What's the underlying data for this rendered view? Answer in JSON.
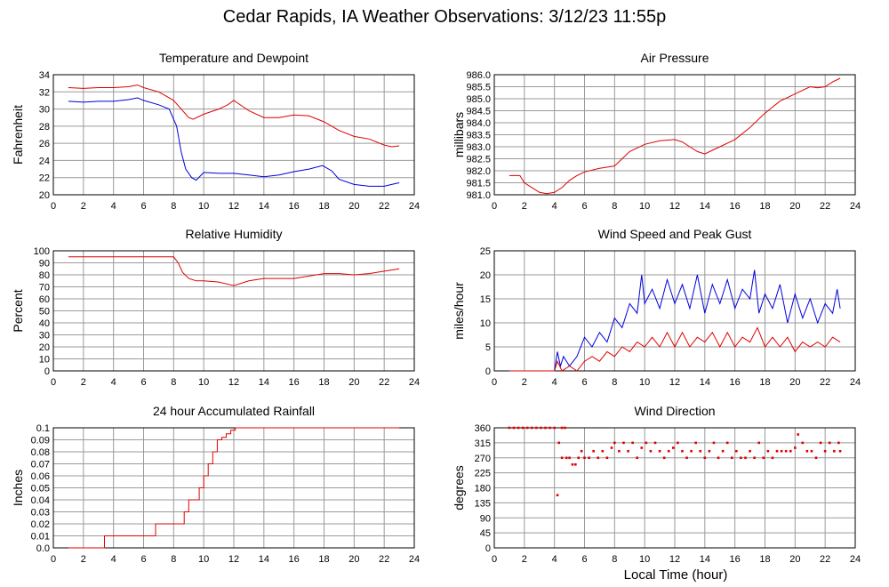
{
  "title": "Cedar Rapids, IA Weather Observations: 3/12/23 11:55p",
  "xlabel": "Local Time (hour)",
  "colors": {
    "red": "#e00000",
    "blue": "#0000e0",
    "grid": "#9a9a9a"
  },
  "chart_data": [
    {
      "type": "line",
      "title": "Temperature and Dewpoint",
      "ylabel": "Fahrenheit",
      "xlim": [
        0,
        24
      ],
      "ylim": [
        20,
        34
      ],
      "xticks": [
        "0",
        "2",
        "4",
        "6",
        "8",
        "10",
        "12",
        "14",
        "16",
        "18",
        "20",
        "22",
        "24"
      ],
      "yticks": [
        "20",
        "22",
        "24",
        "26",
        "28",
        "30",
        "32",
        "34"
      ],
      "series": [
        {
          "color": "#e00000",
          "x": [
            1,
            2,
            3,
            4,
            5,
            5.6,
            6,
            7,
            7.5,
            8,
            8.5,
            9,
            9.3,
            10,
            11,
            11.6,
            12,
            13,
            14,
            15,
            16,
            17,
            18,
            19,
            20,
            21,
            22,
            22.5,
            23
          ],
          "y": [
            32.5,
            32.4,
            32.5,
            32.5,
            32.6,
            32.8,
            32.5,
            32,
            31.5,
            31,
            30,
            29,
            28.8,
            29.4,
            30,
            30.5,
            31,
            29.8,
            29,
            29,
            29.3,
            29.2,
            28.5,
            27.5,
            26.8,
            26.5,
            25.8,
            25.6,
            25.7
          ]
        },
        {
          "color": "#0000e0",
          "x": [
            1,
            2,
            3,
            4,
            5,
            5.6,
            6,
            7,
            7.7,
            8.2,
            8.5,
            8.8,
            9.2,
            9.5,
            10,
            11,
            12,
            13,
            14,
            15,
            16,
            17,
            17.9,
            18.5,
            19,
            20,
            21,
            22,
            22.5,
            23
          ],
          "y": [
            30.9,
            30.8,
            30.9,
            30.9,
            31.1,
            31.3,
            31,
            30.5,
            30,
            28,
            25,
            23,
            22,
            21.7,
            22.6,
            22.5,
            22.5,
            22.3,
            22.1,
            22.3,
            22.7,
            23,
            23.4,
            22.8,
            21.8,
            21.2,
            21.0,
            21.0,
            21.2,
            21.4
          ]
        }
      ]
    },
    {
      "type": "line",
      "title": "Air Pressure",
      "ylabel": "millibars",
      "xlim": [
        0,
        24
      ],
      "ylim": [
        981,
        986
      ],
      "xticks": [
        "0",
        "2",
        "4",
        "6",
        "8",
        "10",
        "12",
        "14",
        "16",
        "18",
        "20",
        "22",
        "24"
      ],
      "yticks": [
        "981.0",
        "981.5",
        "982.0",
        "982.5",
        "983.0",
        "983.5",
        "984.0",
        "984.5",
        "985.0",
        "985.5",
        "986.0"
      ],
      "series": [
        {
          "color": "#e00000",
          "x": [
            1,
            1.7,
            2,
            2.5,
            3,
            3.5,
            4,
            4.5,
            5,
            5.5,
            6,
            7,
            8,
            8.5,
            9,
            10,
            11,
            12,
            12.5,
            13,
            13.5,
            14,
            14.5,
            15,
            16,
            17,
            18,
            19,
            20,
            21,
            21.5,
            22,
            22.5,
            23
          ],
          "y": [
            981.8,
            981.8,
            981.5,
            981.3,
            981.1,
            981.05,
            981.1,
            981.3,
            981.6,
            981.8,
            981.95,
            982.1,
            982.2,
            982.5,
            982.8,
            983.1,
            983.25,
            983.3,
            983.2,
            983.0,
            982.8,
            982.7,
            982.85,
            983.0,
            983.3,
            983.8,
            984.4,
            984.9,
            985.2,
            985.5,
            985.45,
            985.5,
            985.7,
            985.85
          ]
        }
      ]
    },
    {
      "type": "line",
      "title": "Relative Humidity",
      "ylabel": "Percent",
      "xlim": [
        0,
        24
      ],
      "ylim": [
        0,
        100
      ],
      "xticks": [
        "0",
        "2",
        "4",
        "6",
        "8",
        "10",
        "12",
        "14",
        "16",
        "18",
        "20",
        "22",
        "24"
      ],
      "yticks": [
        "0",
        "10",
        "20",
        "30",
        "40",
        "50",
        "60",
        "70",
        "80",
        "90",
        "100"
      ],
      "series": [
        {
          "color": "#e00000",
          "x": [
            1,
            2,
            4,
            6,
            7,
            8,
            8.3,
            8.6,
            9,
            9.5,
            10,
            11,
            12,
            13,
            14,
            15,
            16,
            17,
            18,
            19,
            20,
            21,
            22,
            23
          ],
          "y": [
            95,
            95,
            95,
            95,
            95,
            95,
            90,
            82,
            77,
            75,
            75,
            74,
            71,
            75,
            77,
            77,
            77,
            79,
            81,
            81,
            80,
            81,
            83,
            85
          ]
        }
      ]
    },
    {
      "type": "line",
      "title": "Wind Speed and Peak Gust",
      "ylabel": "miles/hour",
      "xlim": [
        0,
        24
      ],
      "ylim": [
        0,
        25
      ],
      "xticks": [
        "0",
        "2",
        "4",
        "6",
        "8",
        "10",
        "12",
        "14",
        "16",
        "18",
        "20",
        "22",
        "24"
      ],
      "yticks": [
        "0",
        "5",
        "10",
        "15",
        "20",
        "25"
      ],
      "series": [
        {
          "color": "#0000e0",
          "x": [
            1,
            2,
            3,
            4,
            4.2,
            4.4,
            4.6,
            5,
            5.5,
            6,
            6.5,
            7,
            7.5,
            8,
            8.5,
            9,
            9.5,
            9.8,
            10,
            10.5,
            11,
            11.5,
            12,
            12.5,
            13,
            13.5,
            14,
            14.5,
            15,
            15.5,
            16,
            16.5,
            17,
            17.3,
            17.6,
            18,
            18.5,
            19,
            19.5,
            20,
            20.5,
            21,
            21.5,
            22,
            22.5,
            22.8,
            23
          ],
          "y": [
            0,
            0,
            0,
            0,
            4,
            1,
            3,
            1,
            3,
            7,
            5,
            8,
            6,
            11,
            9,
            14,
            12,
            20,
            14,
            17,
            13,
            19,
            14,
            18,
            13,
            20,
            12,
            18,
            14,
            19,
            13,
            17,
            15,
            21,
            12,
            16,
            13,
            18,
            10,
            16,
            11,
            15,
            10,
            14,
            12,
            17,
            13
          ]
        },
        {
          "color": "#e00000",
          "x": [
            1,
            2,
            3,
            4,
            4.2,
            4.5,
            5,
            5.5,
            6,
            6.5,
            7,
            7.5,
            8,
            8.5,
            9,
            9.5,
            10,
            10.5,
            11,
            11.5,
            12,
            12.5,
            13,
            13.5,
            14,
            14.5,
            15,
            15.5,
            16,
            16.5,
            17,
            17.5,
            18,
            18.5,
            19,
            19.5,
            20,
            20.5,
            21,
            21.5,
            22,
            22.5,
            23
          ],
          "y": [
            0,
            0,
            0,
            0,
            2,
            0,
            1,
            0,
            2,
            3,
            2,
            4,
            3,
            5,
            4,
            6,
            5,
            7,
            5,
            8,
            5,
            8,
            5,
            7,
            6,
            8,
            5,
            8,
            5,
            7,
            6,
            9,
            5,
            7,
            5,
            7,
            4,
            6,
            5,
            6,
            5,
            7,
            6
          ]
        }
      ]
    },
    {
      "type": "line",
      "title": "24 hour Accumulated Rainfall",
      "ylabel": "Inches",
      "xlim": [
        0,
        24
      ],
      "ylim": [
        0,
        0.1
      ],
      "xticks": [
        "0",
        "2",
        "4",
        "6",
        "8",
        "10",
        "12",
        "14",
        "16",
        "18",
        "20",
        "22",
        "24"
      ],
      "yticks": [
        "0.0",
        "0.01",
        "0.02",
        "0.03",
        "0.04",
        "0.05",
        "0.06",
        "0.07",
        "0.08",
        "0.09",
        "0.1"
      ],
      "series": [
        {
          "color": "#e00000",
          "step": true,
          "x": [
            1,
            3.4,
            6.8,
            8.7,
            9.0,
            9.7,
            10.0,
            10.3,
            10.6,
            10.9,
            11.2,
            11.5,
            11.8,
            12.1,
            23
          ],
          "y": [
            0,
            0.01,
            0.02,
            0.03,
            0.04,
            0.05,
            0.06,
            0.07,
            0.08,
            0.09,
            0.092,
            0.095,
            0.098,
            0.1,
            0.1
          ]
        }
      ]
    },
    {
      "type": "scatter",
      "title": "Wind Direction",
      "ylabel": "degrees",
      "xlim": [
        0,
        24
      ],
      "ylim": [
        0,
        360
      ],
      "xticks": [
        "0",
        "2",
        "4",
        "6",
        "8",
        "10",
        "12",
        "14",
        "16",
        "18",
        "20",
        "22",
        "24"
      ],
      "yticks": [
        "0",
        "45",
        "90",
        "135",
        "180",
        "225",
        "270",
        "315",
        "360"
      ],
      "series": [
        {
          "color": "#e00000",
          "points": [
            [
              1,
              360
            ],
            [
              1.3,
              360
            ],
            [
              1.6,
              360
            ],
            [
              1.9,
              360
            ],
            [
              2.2,
              360
            ],
            [
              2.5,
              360
            ],
            [
              2.8,
              360
            ],
            [
              3.1,
              360
            ],
            [
              3.4,
              360
            ],
            [
              3.7,
              360
            ],
            [
              4,
              360
            ],
            [
              4.5,
              360
            ],
            [
              4.7,
              360
            ],
            [
              4.2,
              158
            ],
            [
              4.3,
              315
            ],
            [
              4.5,
              270
            ],
            [
              4.8,
              270
            ],
            [
              5,
              270
            ],
            [
              5.2,
              250
            ],
            [
              5.4,
              250
            ],
            [
              5.6,
              270
            ],
            [
              5.8,
              290
            ],
            [
              6,
              270
            ],
            [
              6.3,
              270
            ],
            [
              6.6,
              290
            ],
            [
              6.9,
              270
            ],
            [
              7.2,
              290
            ],
            [
              7.5,
              270
            ],
            [
              7.8,
              300
            ],
            [
              8,
              315
            ],
            [
              8.3,
              290
            ],
            [
              8.6,
              315
            ],
            [
              8.9,
              290
            ],
            [
              9.2,
              315
            ],
            [
              9.5,
              270
            ],
            [
              9.8,
              300
            ],
            [
              10.1,
              315
            ],
            [
              10.4,
              290
            ],
            [
              10.7,
              315
            ],
            [
              11,
              290
            ],
            [
              11.3,
              270
            ],
            [
              11.6,
              290
            ],
            [
              11.9,
              300
            ],
            [
              12.2,
              315
            ],
            [
              12.5,
              290
            ],
            [
              12.8,
              270
            ],
            [
              13.1,
              290
            ],
            [
              13.4,
              315
            ],
            [
              13.7,
              290
            ],
            [
              14,
              270
            ],
            [
              14.3,
              290
            ],
            [
              14.6,
              315
            ],
            [
              14.9,
              270
            ],
            [
              15.2,
              290
            ],
            [
              15.5,
              315
            ],
            [
              15.8,
              270
            ],
            [
              16.1,
              290
            ],
            [
              16.4,
              270
            ],
            [
              16.7,
              270
            ],
            [
              17,
              290
            ],
            [
              17.3,
              270
            ],
            [
              17.6,
              315
            ],
            [
              17.9,
              270
            ],
            [
              18.2,
              290
            ],
            [
              18.5,
              270
            ],
            [
              18.8,
              290
            ],
            [
              19.1,
              290
            ],
            [
              19.4,
              290
            ],
            [
              19.7,
              290
            ],
            [
              20,
              300
            ],
            [
              20.2,
              340
            ],
            [
              20.5,
              315
            ],
            [
              20.8,
              290
            ],
            [
              21.1,
              290
            ],
            [
              21.4,
              270
            ],
            [
              21.7,
              315
            ],
            [
              22,
              290
            ],
            [
              22.3,
              315
            ],
            [
              22.6,
              290
            ],
            [
              22.9,
              315
            ],
            [
              23,
              290
            ]
          ]
        }
      ]
    }
  ]
}
